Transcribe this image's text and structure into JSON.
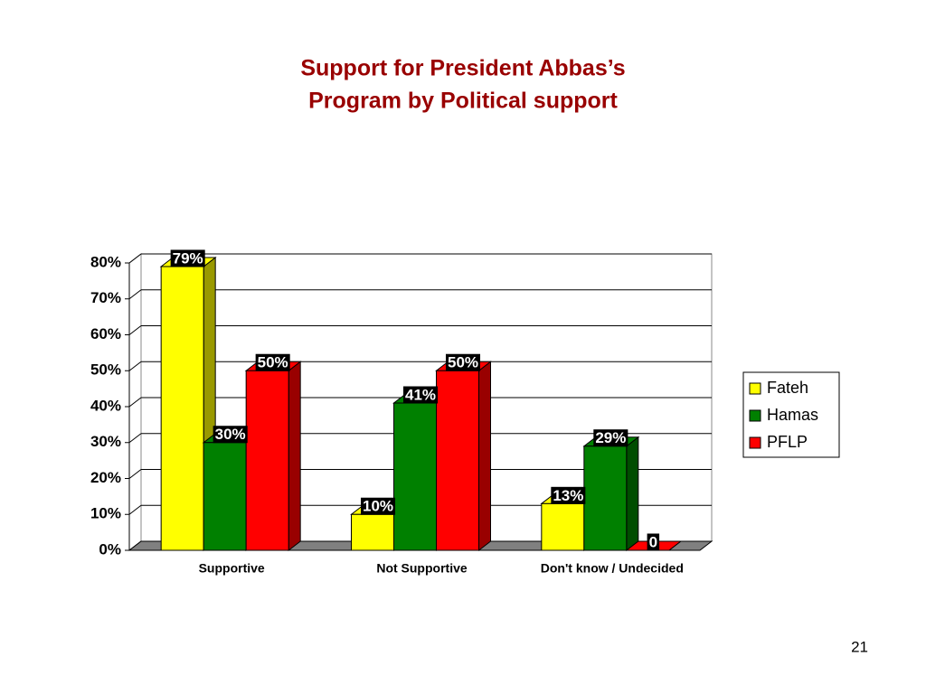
{
  "chart_data": {
    "type": "bar3d",
    "title": "Support for President Abbas’s",
    "subtitle": "Program by Political support",
    "categories": [
      "Supportive",
      "Not Supportive",
      "Don't know / Undecided"
    ],
    "series": [
      {
        "name": "Fateh",
        "color": "#ffff00",
        "side": "#999900",
        "values": [
          79,
          10,
          13
        ],
        "value_labels": [
          "79%",
          "10%",
          "13%"
        ]
      },
      {
        "name": "Hamas",
        "color": "#008000",
        "side": "#004d00",
        "values": [
          30,
          41,
          29
        ],
        "value_labels": [
          "30%",
          "41%",
          "29%"
        ]
      },
      {
        "name": "PFLP",
        "color": "#ff0000",
        "side": "#990000",
        "values": [
          50,
          50,
          0
        ],
        "value_labels": [
          "50%",
          "50%",
          "0"
        ]
      }
    ],
    "ylim": [
      0,
      80
    ],
    "yticks": [
      {
        "value": 0,
        "label": "0%"
      },
      {
        "value": 10,
        "label": "10%"
      },
      {
        "value": 20,
        "label": "20%"
      },
      {
        "value": 30,
        "label": "30%"
      },
      {
        "value": 40,
        "label": "40%"
      },
      {
        "value": 50,
        "label": "50%"
      },
      {
        "value": 60,
        "label": "60%"
      },
      {
        "value": 70,
        "label": "70%"
      },
      {
        "value": 80,
        "label": "80%"
      }
    ],
    "grid": true,
    "legend": "right"
  },
  "slide_number": "21"
}
